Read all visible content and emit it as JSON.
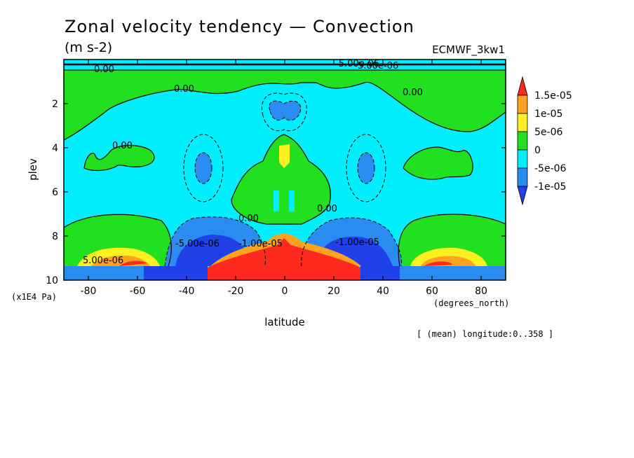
{
  "chart_data": {
    "type": "heatmap",
    "title": "Zonal velocity tendency — Convection",
    "subtitle": "(m s-2)",
    "dataset_label": "ECMWF_3kw1",
    "xlabel": "latitude",
    "x_units": "(degrees_north)",
    "ylabel": "plev",
    "y_units": "(x1E4 Pa)",
    "footnote": "[ (mean) longitude:0..358 ]",
    "xlim": [
      -90,
      90
    ],
    "ylim": [
      0,
      10
    ],
    "y_inverted": true,
    "x_ticks": [
      -80,
      -60,
      -40,
      -20,
      0,
      20,
      40,
      60,
      80
    ],
    "y_ticks": [
      2,
      4,
      6,
      8,
      10
    ],
    "legend": {
      "position": "right",
      "levels": [
        "1.5e-05",
        "1e-05",
        "5e-06",
        "0",
        "-5e-06",
        "-1e-05"
      ],
      "colors": [
        "#ff2a1f",
        "#ffa21f",
        "#fff022",
        "#20e020",
        "#00eeff",
        "#2a8cf0",
        "#2040e8"
      ]
    },
    "contour_labels": [
      "0.00",
      "0.00",
      "0.00",
      "0.00",
      "-5.00e-06",
      "-1.00e-05",
      "5.00e-06",
      "-5.00e-06",
      "-1.00e-05",
      "0.00",
      "0.00",
      "5.00e-06"
    ]
  }
}
